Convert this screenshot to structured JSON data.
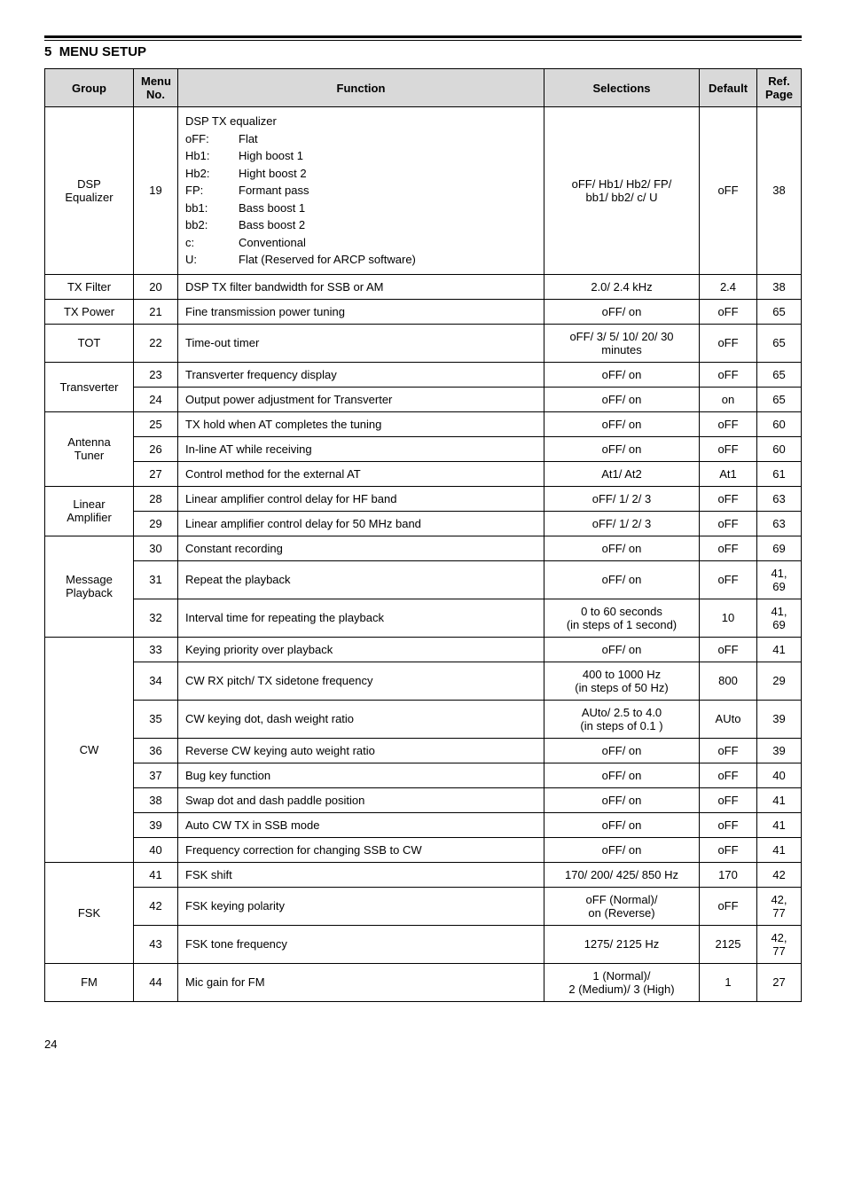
{
  "section_number": "5",
  "section_title": "MENU SETUP",
  "page_number": "24",
  "headers": {
    "group": "Group",
    "menu_no": "Menu\nNo.",
    "function": "Function",
    "selections": "Selections",
    "default": "Default",
    "ref_page": "Ref.\nPage"
  },
  "dsp": {
    "group": "DSP\nEqualizer",
    "menu": "19",
    "title": "DSP TX equalizer",
    "items": [
      {
        "k": "oFF:",
        "v": "Flat"
      },
      {
        "k": "Hb1:",
        "v": "High boost 1"
      },
      {
        "k": "Hb2:",
        "v": "Hight boost 2"
      },
      {
        "k": "FP:",
        "v": "Formant pass"
      },
      {
        "k": "bb1:",
        "v": "Bass boost 1"
      },
      {
        "k": "bb2:",
        "v": "Bass boost 2"
      },
      {
        "k": "c:",
        "v": "Conventional"
      },
      {
        "k": "U:",
        "v": "Flat (Reserved for ARCP software)"
      }
    ],
    "sel": "oFF/ Hb1/ Hb2/ FP/\nbb1/ bb2/ c/ U",
    "def": "oFF",
    "ref": "38"
  },
  "rows": [
    {
      "group": "TX Filter",
      "menu": "20",
      "func": "DSP TX filter bandwidth for SSB or AM",
      "sel": "2.0/ 2.4 kHz",
      "def": "2.4",
      "ref": "38"
    },
    {
      "group": "TX Power",
      "menu": "21",
      "func": "Fine transmission power tuning",
      "sel": "oFF/ on",
      "def": "oFF",
      "ref": "65"
    },
    {
      "group": "TOT",
      "menu": "22",
      "func": "Time-out timer",
      "sel": "oFF/ 3/ 5/ 10/ 20/ 30\nminutes",
      "def": "oFF",
      "ref": "65"
    }
  ],
  "transverter": {
    "group": "Transverter",
    "r": [
      {
        "menu": "23",
        "func": "Transverter frequency display",
        "sel": "oFF/ on",
        "def": "oFF",
        "ref": "65"
      },
      {
        "menu": "24",
        "func": "Output power adjustment for Transverter",
        "sel": "oFF/ on",
        "def": "on",
        "ref": "65"
      }
    ]
  },
  "antenna": {
    "group": "Antenna\nTuner",
    "r": [
      {
        "menu": "25",
        "func": "TX hold when AT completes the tuning",
        "sel": "oFF/ on",
        "def": "oFF",
        "ref": "60"
      },
      {
        "menu": "26",
        "func": "In-line AT while receiving",
        "sel": "oFF/ on",
        "def": "oFF",
        "ref": "60"
      },
      {
        "menu": "27",
        "func": "Control method for the external AT",
        "sel": "At1/ At2",
        "def": "At1",
        "ref": "61"
      }
    ]
  },
  "linear": {
    "group": "Linear\nAmplifier",
    "r": [
      {
        "menu": "28",
        "func": "Linear amplifier control delay for HF band",
        "sel": "oFF/ 1/ 2/ 3",
        "def": "oFF",
        "ref": "63"
      },
      {
        "menu": "29",
        "func": "Linear amplifier control delay for 50 MHz band",
        "sel": "oFF/ 1/ 2/ 3",
        "def": "oFF",
        "ref": "63"
      }
    ]
  },
  "message": {
    "group": "Message\nPlayback",
    "r": [
      {
        "menu": "30",
        "func": "Constant recording",
        "sel": "oFF/ on",
        "def": "oFF",
        "ref": "69"
      },
      {
        "menu": "31",
        "func": "Repeat the playback",
        "sel": "oFF/ on",
        "def": "oFF",
        "ref": "41,\n69"
      },
      {
        "menu": "32",
        "func": "Interval time for repeating the playback",
        "sel": "0 to 60 seconds\n(in steps of 1 second)",
        "def": "10",
        "ref": "41,\n69"
      }
    ]
  },
  "cw": {
    "group": "CW",
    "r": [
      {
        "menu": "33",
        "func": "Keying priority over playback",
        "sel": "oFF/ on",
        "def": "oFF",
        "ref": "41"
      },
      {
        "menu": "34",
        "func": "CW RX pitch/ TX sidetone frequency",
        "sel": "400 to 1000 Hz\n(in steps of 50 Hz)",
        "def": "800",
        "ref": "29"
      },
      {
        "menu": "35",
        "func": "CW keying dot, dash weight ratio",
        "sel": "AUto/ 2.5 to 4.0\n(in steps of 0.1 )",
        "def": "AUto",
        "ref": "39"
      },
      {
        "menu": "36",
        "func": "Reverse CW keying auto weight ratio",
        "sel": "oFF/ on",
        "def": "oFF",
        "ref": "39"
      },
      {
        "menu": "37",
        "func": "Bug key function",
        "sel": "oFF/ on",
        "def": "oFF",
        "ref": "40"
      },
      {
        "menu": "38",
        "func": "Swap dot and dash paddle position",
        "sel": "oFF/ on",
        "def": "oFF",
        "ref": "41"
      },
      {
        "menu": "39",
        "func": "Auto CW TX in SSB mode",
        "sel": "oFF/ on",
        "def": "oFF",
        "ref": "41"
      },
      {
        "menu": "40",
        "func": "Frequency correction for changing SSB to CW",
        "sel": "oFF/ on",
        "def": "oFF",
        "ref": "41"
      }
    ]
  },
  "fsk": {
    "group": "FSK",
    "r": [
      {
        "menu": "41",
        "func": "FSK shift",
        "sel": "170/ 200/ 425/ 850 Hz",
        "def": "170",
        "ref": "42"
      },
      {
        "menu": "42",
        "func": "FSK keying polarity",
        "sel": "oFF (Normal)/\non (Reverse)",
        "def": "oFF",
        "ref": "42,\n77"
      },
      {
        "menu": "43",
        "func": "FSK tone frequency",
        "sel": "1275/ 2125 Hz",
        "def": "2125",
        "ref": "42,\n77"
      }
    ]
  },
  "fm": {
    "group": "FM",
    "menu": "44",
    "func": "Mic gain for FM",
    "sel": "1 (Normal)/\n2 (Medium)/ 3 (High)",
    "def": "1",
    "ref": "27"
  }
}
